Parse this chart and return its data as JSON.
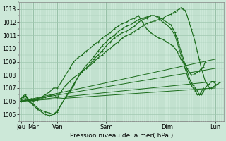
{
  "xlabel": "Pression niveau de la mer( hPa )",
  "ylim": [
    1004.5,
    1013.5
  ],
  "yticks": [
    1005,
    1006,
    1007,
    1008,
    1009,
    1010,
    1011,
    1012,
    1013
  ],
  "x_day_labels": [
    "Jeu",
    "Mar",
    "Ven",
    "Sam",
    "Dim",
    "Lun"
  ],
  "x_day_positions": [
    0,
    12,
    36,
    84,
    144,
    192
  ],
  "xlim": [
    -2,
    200
  ],
  "bg_color": "#cce8d8",
  "grid_color": "#a0c8b0",
  "line_color": "#1a6b1a",
  "figsize": [
    3.2,
    2.0
  ],
  "dpi": 100,
  "lines": [
    {
      "x": [
        0,
        2,
        4,
        6,
        8,
        10,
        12,
        16,
        20,
        24,
        28,
        32,
        36,
        40,
        44,
        48,
        52,
        56,
        60,
        64,
        68,
        72,
        76,
        80,
        84,
        88,
        92,
        96,
        100,
        104,
        108,
        112,
        116,
        120,
        124,
        128,
        132,
        136,
        140,
        144,
        148,
        150,
        152,
        154,
        156,
        158,
        160,
        162,
        164,
        166,
        168,
        170,
        172,
        174,
        176,
        178,
        180,
        182,
        184,
        186,
        188,
        190,
        192,
        194,
        196
      ],
      "y": [
        1006.2,
        1006.3,
        1006.4,
        1006.2,
        1006.0,
        1006.1,
        1006.0,
        1006.1,
        1006.2,
        1006.3,
        1006.4,
        1006.5,
        1006.3,
        1006.8,
        1007.2,
        1007.5,
        1007.8,
        1008.0,
        1008.3,
        1008.5,
        1008.7,
        1009.0,
        1009.3,
        1009.5,
        1009.8,
        1010.0,
        1010.3,
        1010.5,
        1010.8,
        1011.0,
        1011.1,
        1011.3,
        1011.5,
        1011.7,
        1011.9,
        1012.0,
        1012.1,
        1012.2,
        1012.3,
        1012.5,
        1012.6,
        1012.7,
        1012.8,
        1012.9,
        1013.0,
        1013.1,
        1013.0,
        1012.9,
        1012.5,
        1012.0,
        1011.5,
        1011.0,
        1010.5,
        1009.8,
        1009.2,
        1008.5,
        1008.0,
        1007.5,
        1007.3,
        1007.0,
        1007.0,
        1007.1,
        1007.2,
        1007.3,
        1007.4
      ],
      "marker": true
    },
    {
      "x": [
        0,
        2,
        4,
        6,
        8,
        10,
        12,
        16,
        20,
        24,
        28,
        32,
        36,
        40,
        44,
        48,
        52,
        56,
        60,
        64,
        68,
        72,
        76,
        80,
        84,
        88,
        92,
        96,
        100,
        104,
        108,
        112,
        116,
        120,
        124,
        128,
        132,
        136,
        140,
        144,
        148,
        150,
        152,
        154,
        156,
        158,
        160,
        162,
        164,
        166,
        168,
        170,
        172,
        174,
        176,
        178,
        180,
        182
      ],
      "y": [
        1006.2,
        1006.4,
        1006.5,
        1006.3,
        1006.1,
        1006.2,
        1006.1,
        1006.2,
        1006.3,
        1006.5,
        1006.7,
        1007.0,
        1007.0,
        1007.5,
        1008.0,
        1008.5,
        1009.0,
        1009.3,
        1009.5,
        1009.8,
        1010.0,
        1010.3,
        1010.5,
        1010.8,
        1011.0,
        1011.2,
        1011.5,
        1011.7,
        1011.9,
        1012.0,
        1012.2,
        1012.3,
        1012.5,
        1012.0,
        1011.5,
        1011.2,
        1011.0,
        1010.8,
        1010.7,
        1010.5,
        1010.3,
        1010.2,
        1010.0,
        1009.8,
        1009.5,
        1009.2,
        1009.0,
        1008.8,
        1008.5,
        1008.2,
        1008.0,
        1008.0,
        1008.1,
        1008.2,
        1008.3,
        1008.5,
        1008.6,
        1009.0
      ],
      "marker": true
    },
    {
      "x": [
        0,
        192
      ],
      "y": [
        1006.0,
        1007.0
      ],
      "marker": false
    },
    {
      "x": [
        0,
        192
      ],
      "y": [
        1006.0,
        1007.5
      ],
      "marker": false
    },
    {
      "x": [
        0,
        192
      ],
      "y": [
        1006.0,
        1008.5
      ],
      "marker": false
    },
    {
      "x": [
        0,
        192
      ],
      "y": [
        1006.0,
        1009.2
      ],
      "marker": false
    },
    {
      "x": [
        0,
        4,
        8,
        12,
        16,
        20,
        24,
        28,
        32,
        36,
        40,
        44,
        48,
        52,
        56,
        60,
        64,
        68,
        72,
        76,
        80,
        84,
        88,
        92,
        96,
        100,
        104,
        108,
        112,
        116,
        120,
        124,
        128,
        132,
        136,
        140,
        144,
        148,
        152,
        154,
        156,
        158,
        160,
        162,
        164,
        166,
        168,
        170,
        172,
        174,
        176,
        178,
        180
      ],
      "y": [
        1006.1,
        1006.2,
        1006.1,
        1005.8,
        1005.5,
        1005.3,
        1005.2,
        1005.1,
        1005.0,
        1005.2,
        1005.8,
        1006.3,
        1006.7,
        1007.2,
        1007.8,
        1008.2,
        1008.5,
        1008.8,
        1009.2,
        1009.5,
        1009.8,
        1010.2,
        1010.5,
        1010.8,
        1011.0,
        1011.2,
        1011.3,
        1011.5,
        1011.7,
        1012.0,
        1012.2,
        1012.3,
        1012.5,
        1012.5,
        1012.3,
        1012.0,
        1011.8,
        1011.5,
        1011.0,
        1010.5,
        1010.0,
        1009.5,
        1009.0,
        1008.5,
        1008.0,
        1007.5,
        1007.2,
        1007.0,
        1006.8,
        1006.5,
        1006.5,
        1006.7,
        1007.0
      ],
      "marker": true
    },
    {
      "x": [
        0,
        4,
        8,
        12,
        16,
        20,
        24,
        28,
        32,
        36,
        40,
        44,
        48,
        52,
        56,
        60,
        64,
        68,
        72,
        76,
        80,
        84,
        88,
        92,
        96,
        100,
        104,
        108,
        112,
        116,
        120,
        124,
        128,
        132,
        136,
        140,
        144,
        148,
        150,
        152,
        154,
        156,
        158,
        160,
        162,
        164,
        166,
        168,
        170,
        172,
        174,
        176,
        178,
        180,
        182,
        184,
        186,
        188,
        190,
        192
      ],
      "y": [
        1006.0,
        1006.1,
        1006.0,
        1005.7,
        1005.4,
        1005.2,
        1005.0,
        1004.9,
        1005.0,
        1005.3,
        1005.8,
        1006.3,
        1006.8,
        1007.3,
        1007.8,
        1008.3,
        1008.7,
        1009.0,
        1009.4,
        1009.8,
        1010.2,
        1010.5,
        1010.8,
        1011.0,
        1011.3,
        1011.5,
        1011.7,
        1011.8,
        1012.0,
        1012.2,
        1012.3,
        1012.4,
        1012.5,
        1012.5,
        1012.4,
        1012.2,
        1012.0,
        1011.8,
        1011.5,
        1011.2,
        1010.8,
        1010.3,
        1009.8,
        1009.3,
        1008.8,
        1008.3,
        1007.8,
        1007.4,
        1007.2,
        1007.0,
        1006.8,
        1006.5,
        1006.5,
        1006.7,
        1007.0,
        1007.2,
        1007.3,
        1007.5,
        1007.5,
        1007.3
      ],
      "marker": true
    }
  ]
}
